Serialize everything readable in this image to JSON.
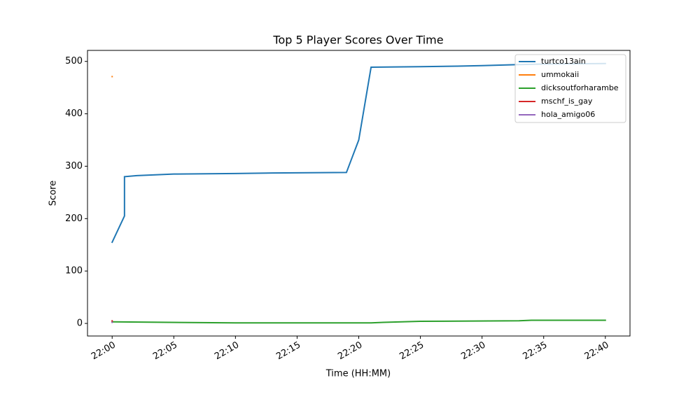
{
  "chart_data": {
    "type": "line",
    "title": "Top 5 Player Scores Over Time",
    "xlabel": "Time (HH:MM)",
    "ylabel": "Score",
    "xlim": [
      "21:58",
      "22:42"
    ],
    "xticks": [
      "22:00",
      "22:05",
      "22:10",
      "22:15",
      "22:20",
      "22:25",
      "22:30",
      "22:35",
      "22:40"
    ],
    "ylim": [
      -24,
      521
    ],
    "yticks": [
      0,
      100,
      200,
      300,
      400,
      500
    ],
    "legend": "upper right",
    "series": [
      {
        "name": "turtco13ain",
        "color": "#1f77b4",
        "x": [
          "22:00",
          "22:01",
          "22:01",
          "22:02",
          "22:05",
          "22:10",
          "22:13",
          "22:19",
          "22:20",
          "22:21",
          "22:25",
          "22:28",
          "22:30",
          "22:33",
          "22:35",
          "22:40"
        ],
        "values": [
          155,
          205,
          280,
          282,
          285,
          286,
          287,
          288,
          350,
          489,
          490,
          491,
          492,
          494,
          495,
          496
        ]
      },
      {
        "name": "ummokaii",
        "color": "#ff7f0e",
        "x": [
          "22:00",
          "22:00"
        ],
        "values": [
          471,
          471
        ]
      },
      {
        "name": "dicksoutforharambe",
        "color": "#2ca02c",
        "x": [
          "22:00",
          "22:10",
          "22:21",
          "22:22",
          "22:25",
          "22:33",
          "22:34",
          "22:40"
        ],
        "values": [
          3,
          1,
          1,
          2,
          4,
          5,
          6,
          6
        ]
      },
      {
        "name": "mschf_is_gay",
        "color": "#d62728",
        "x": [
          "22:00",
          "22:00"
        ],
        "values": [
          5,
          3
        ]
      },
      {
        "name": "hola_amigo06",
        "color": "#9467bd",
        "x": [
          "22:00",
          "22:00"
        ],
        "values": [
          2,
          2
        ]
      }
    ]
  }
}
